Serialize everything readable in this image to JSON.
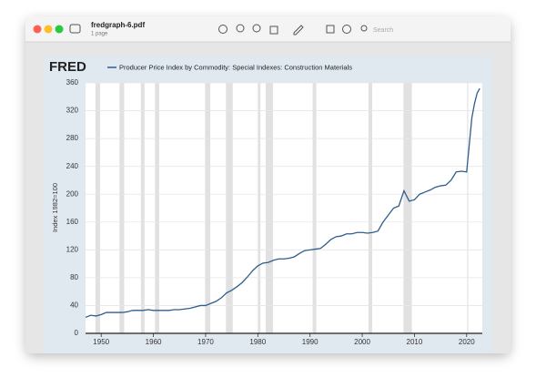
{
  "window": {
    "filename": "fredgraph-6.pdf",
    "pages": "1 page",
    "search": "Search"
  },
  "chart_data": {
    "type": "line",
    "logo": "FRED",
    "title": "Producer Price Index by Commodity: Special Indexes: Construction Materials",
    "y_label": "Index 1982=100",
    "x": [
      1947,
      1948,
      1949,
      1950,
      1951,
      1952,
      1953,
      1954,
      1955,
      1956,
      1957,
      1958,
      1959,
      1960,
      1961,
      1962,
      1963,
      1964,
      1965,
      1966,
      1967,
      1968,
      1969,
      1970,
      1971,
      1972,
      1973,
      1974,
      1975,
      1976,
      1977,
      1978,
      1979,
      1980,
      1981,
      1982,
      1983,
      1984,
      1985,
      1986,
      1987,
      1988,
      1989,
      1990,
      1991,
      1992,
      1993,
      1994,
      1995,
      1996,
      1997,
      1998,
      1999,
      2000,
      2001,
      2002,
      2003,
      2004,
      2005,
      2006,
      2007,
      2008,
      2009,
      2010,
      2011,
      2012,
      2013,
      2014,
      2015,
      2016,
      2017,
      2018,
      2019,
      2020,
      2021,
      2021.5,
      2022,
      2022.5
    ],
    "series": [
      {
        "name": "Producer Price Index by Commodity: Special Indexes: Construction Materials",
        "color": "#2f5d8c",
        "values": [
          23,
          26,
          25,
          27,
          30,
          30,
          30,
          30,
          31,
          33,
          33,
          33,
          34,
          33,
          33,
          33,
          33,
          34,
          34,
          35,
          36,
          38,
          40,
          40,
          43,
          46,
          51,
          58,
          62,
          67,
          73,
          81,
          90,
          97,
          101,
          102,
          105,
          107,
          107,
          108,
          110,
          115,
          119,
          120,
          121,
          122,
          128,
          135,
          139,
          140,
          143,
          143,
          145,
          145,
          144,
          145,
          147,
          160,
          170,
          180,
          183,
          205,
          190,
          192,
          200,
          203,
          206,
          210,
          212,
          213,
          220,
          232,
          233,
          232,
          310,
          330,
          345,
          352
        ]
      }
    ],
    "recessions": [
      [
        1948.9,
        1949.8
      ],
      [
        1953.5,
        1954.4
      ],
      [
        1957.6,
        1958.3
      ],
      [
        1960.3,
        1961.1
      ],
      [
        1969.9,
        1970.9
      ],
      [
        1973.9,
        1975.2
      ],
      [
        1980.0,
        1980.5
      ],
      [
        1981.5,
        1982.9
      ],
      [
        1990.5,
        1991.2
      ],
      [
        2001.2,
        2001.9
      ],
      [
        2007.9,
        2009.5
      ],
      [
        2020.1,
        2020.3
      ]
    ],
    "recession_color": "#e1e1e1",
    "xlim": [
      1947,
      2023
    ],
    "xticks": [
      1950,
      1960,
      1970,
      1980,
      1990,
      2000,
      2010,
      2020
    ],
    "ylim": [
      0,
      360
    ],
    "yticks": [
      0,
      40,
      80,
      120,
      160,
      200,
      240,
      280,
      320,
      360
    ],
    "grid": true
  }
}
